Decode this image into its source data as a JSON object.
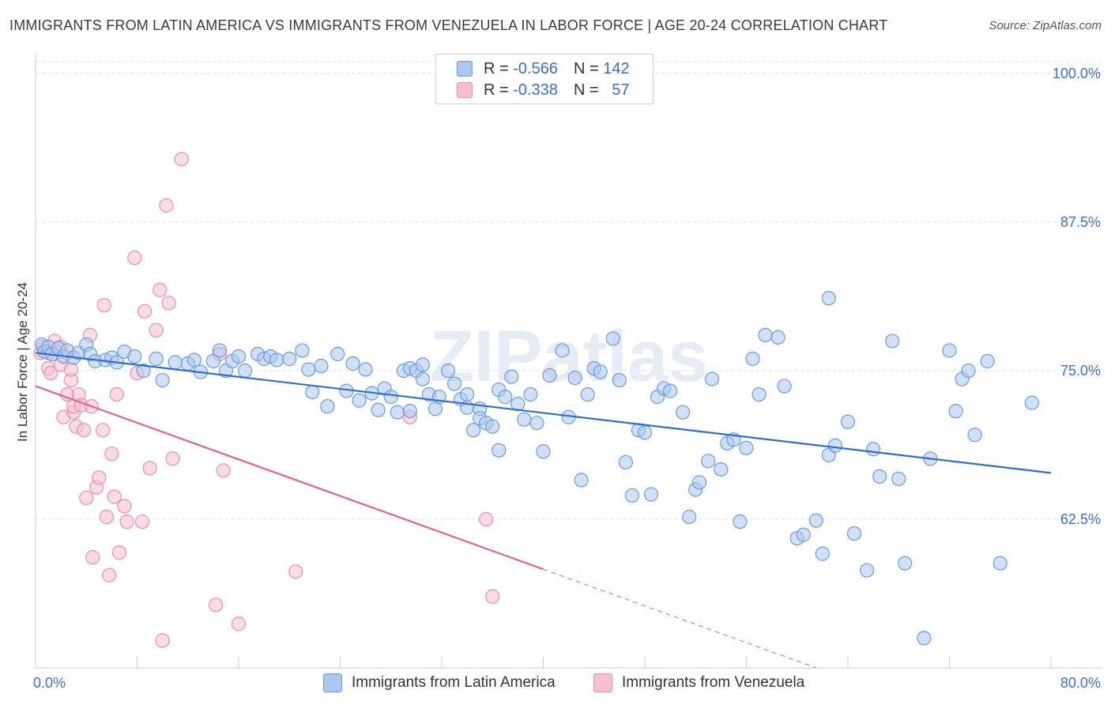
{
  "title": "IMMIGRANTS FROM LATIN AMERICA VS IMMIGRANTS FROM VENEZUELA IN LABOR FORCE | AGE 20-24 CORRELATION CHART",
  "source": "Source: ZipAtlas.com",
  "watermark": "ZIPatlas",
  "legend": {
    "r_label": "R =",
    "n_label": "N =",
    "rows": [
      {
        "r": "-0.566",
        "n": "142"
      },
      {
        "r": "-0.338",
        "n": "57"
      }
    ]
  },
  "bottom_legend": {
    "latin_america": "Immigrants from Latin America",
    "venezuela": "Immigrants from Venezuela"
  },
  "colors": {
    "blue_fill": "#a9c7f0",
    "blue_stroke": "#6c9be0",
    "blue_line": "#2f6fd0",
    "pink_fill": "#f7bfd0",
    "pink_stroke": "#ea8fae",
    "pink_line": "#e0638f",
    "tick_label": "#3a6fd0",
    "grid": "#dddddd"
  },
  "chart_data": {
    "type": "scatter",
    "title": "IMMIGRANTS FROM LATIN AMERICA VS IMMIGRANTS FROM VENEZUELA IN LABOR FORCE | AGE 20-24 CORRELATION CHART",
    "xlabel": "",
    "ylabel": "In Labor Force | Age 20-24",
    "xlim": [
      0,
      80
    ],
    "ylim": [
      50,
      101
    ],
    "x_tick_labels": [
      "0.0%",
      "80.0%"
    ],
    "y_ticks": [
      62.5,
      75.0,
      87.5,
      100.0
    ],
    "y_tick_labels": [
      "62.5%",
      "75.0%",
      "87.5%",
      "100.0%"
    ],
    "grid": true,
    "legend_position": "top-center",
    "series": [
      {
        "name": "Immigrants from Latin America",
        "points": [
          [
            0.5,
            77.2
          ],
          [
            0.7,
            76.6
          ],
          [
            1.0,
            77.0
          ],
          [
            1.3,
            76.4
          ],
          [
            1.8,
            76.9
          ],
          [
            2.2,
            76.2
          ],
          [
            2.5,
            76.7
          ],
          [
            3.0,
            76.1
          ],
          [
            3.4,
            76.5
          ],
          [
            4.0,
            77.2
          ],
          [
            4.3,
            76.4
          ],
          [
            4.7,
            75.8
          ],
          [
            5.5,
            75.9
          ],
          [
            6.0,
            76.1
          ],
          [
            6.4,
            75.7
          ],
          [
            7.0,
            76.6
          ],
          [
            7.8,
            76.2
          ],
          [
            8.5,
            75.0
          ],
          [
            9.5,
            76.0
          ],
          [
            10.0,
            74.2
          ],
          [
            11.0,
            75.7
          ],
          [
            12.0,
            75.6
          ],
          [
            12.5,
            75.9
          ],
          [
            13.0,
            74.9
          ],
          [
            14.0,
            75.8
          ],
          [
            14.5,
            76.7
          ],
          [
            15.0,
            75.0
          ],
          [
            15.5,
            75.8
          ],
          [
            16.0,
            76.2
          ],
          [
            16.5,
            75.0
          ],
          [
            17.5,
            76.4
          ],
          [
            18.0,
            76.0
          ],
          [
            18.5,
            76.2
          ],
          [
            19.0,
            75.9
          ],
          [
            20.0,
            76.0
          ],
          [
            21.0,
            76.7
          ],
          [
            21.5,
            75.1
          ],
          [
            21.8,
            73.2
          ],
          [
            22.5,
            75.4
          ],
          [
            23.0,
            72.0
          ],
          [
            23.8,
            76.4
          ],
          [
            24.5,
            73.3
          ],
          [
            25.0,
            75.6
          ],
          [
            25.5,
            72.5
          ],
          [
            26.0,
            75.1
          ],
          [
            26.5,
            73.1
          ],
          [
            27.0,
            71.7
          ],
          [
            27.5,
            73.5
          ],
          [
            28.0,
            72.8
          ],
          [
            28.5,
            71.5
          ],
          [
            29.0,
            75.0
          ],
          [
            29.5,
            75.2
          ],
          [
            29.5,
            71.6
          ],
          [
            30.0,
            75.0
          ],
          [
            30.5,
            75.5
          ],
          [
            30.5,
            74.3
          ],
          [
            31.0,
            73.0
          ],
          [
            31.5,
            71.8
          ],
          [
            31.8,
            72.8
          ],
          [
            32.5,
            75.0
          ],
          [
            33.0,
            73.9
          ],
          [
            33.5,
            72.6
          ],
          [
            34.0,
            73.0
          ],
          [
            34.0,
            71.9
          ],
          [
            34.5,
            70.0
          ],
          [
            35.0,
            71.8
          ],
          [
            35.0,
            71.0
          ],
          [
            35.5,
            70.6
          ],
          [
            36.0,
            70.3
          ],
          [
            36.5,
            73.4
          ],
          [
            37.0,
            72.8
          ],
          [
            36.5,
            68.3
          ],
          [
            37.5,
            74.5
          ],
          [
            38.0,
            72.2
          ],
          [
            38.5,
            70.9
          ],
          [
            39.0,
            73.0
          ],
          [
            39.5,
            70.6
          ],
          [
            40.0,
            68.2
          ],
          [
            40.5,
            74.6
          ],
          [
            41.5,
            76.7
          ],
          [
            42.0,
            71.1
          ],
          [
            42.5,
            74.4
          ],
          [
            43.0,
            65.8
          ],
          [
            43.5,
            73.0
          ],
          [
            44.0,
            75.2
          ],
          [
            44.5,
            74.9
          ],
          [
            45.5,
            77.7
          ],
          [
            46.0,
            74.2
          ],
          [
            46.5,
            67.3
          ],
          [
            47.0,
            64.5
          ],
          [
            47.5,
            70.0
          ],
          [
            48.0,
            69.8
          ],
          [
            48.5,
            64.6
          ],
          [
            49.0,
            72.8
          ],
          [
            49.5,
            73.5
          ],
          [
            50.0,
            73.3
          ],
          [
            51.0,
            71.5
          ],
          [
            51.5,
            62.7
          ],
          [
            52.0,
            65.0
          ],
          [
            52.3,
            65.6
          ],
          [
            53.0,
            67.4
          ],
          [
            53.3,
            74.3
          ],
          [
            54.0,
            66.7
          ],
          [
            54.5,
            68.9
          ],
          [
            55.0,
            69.2
          ],
          [
            55.5,
            62.3
          ],
          [
            56.0,
            68.5
          ],
          [
            56.5,
            76.0
          ],
          [
            57.0,
            73.0
          ],
          [
            57.5,
            78.0
          ],
          [
            58.5,
            77.8
          ],
          [
            59.0,
            73.7
          ],
          [
            60.0,
            60.9
          ],
          [
            60.5,
            61.2
          ],
          [
            61.5,
            62.4
          ],
          [
            62.0,
            59.6
          ],
          [
            62.5,
            81.1
          ],
          [
            62.5,
            67.9
          ],
          [
            63.0,
            68.7
          ],
          [
            64.0,
            70.7
          ],
          [
            64.5,
            61.3
          ],
          [
            65.5,
            58.2
          ],
          [
            66.0,
            68.4
          ],
          [
            66.5,
            66.1
          ],
          [
            67.5,
            77.5
          ],
          [
            68.0,
            65.9
          ],
          [
            68.5,
            58.8
          ],
          [
            70.0,
            52.5
          ],
          [
            70.5,
            67.6
          ],
          [
            72.0,
            76.7
          ],
          [
            72.5,
            71.6
          ],
          [
            73.0,
            74.3
          ],
          [
            73.5,
            75.0
          ],
          [
            74.0,
            69.6
          ],
          [
            75.0,
            75.8
          ],
          [
            76.0,
            58.8
          ],
          [
            78.5,
            72.3
          ]
        ],
        "trend": {
          "x": [
            0,
            80
          ],
          "y": [
            76.5,
            66.4
          ]
        }
      },
      {
        "name": "Immigrants from Venezuela",
        "points": [
          [
            0.4,
            76.5
          ],
          [
            0.6,
            77.0
          ],
          [
            1.0,
            76.5
          ],
          [
            1.0,
            75.2
          ],
          [
            1.2,
            74.8
          ],
          [
            1.5,
            77.5
          ],
          [
            2.0,
            77.0
          ],
          [
            2.0,
            75.5
          ],
          [
            2.2,
            71.1
          ],
          [
            2.5,
            73.0
          ],
          [
            2.8,
            74.2
          ],
          [
            2.8,
            75.1
          ],
          [
            3.0,
            71.5
          ],
          [
            3.0,
            72.0
          ],
          [
            3.2,
            70.3
          ],
          [
            3.4,
            73.0
          ],
          [
            3.6,
            72.1
          ],
          [
            3.8,
            70.0
          ],
          [
            4.0,
            64.3
          ],
          [
            4.3,
            78.0
          ],
          [
            4.4,
            72.0
          ],
          [
            4.5,
            59.3
          ],
          [
            4.8,
            65.2
          ],
          [
            5.0,
            66.0
          ],
          [
            5.3,
            70.0
          ],
          [
            5.4,
            80.5
          ],
          [
            5.6,
            62.7
          ],
          [
            5.8,
            57.8
          ],
          [
            6.0,
            68.0
          ],
          [
            6.2,
            64.4
          ],
          [
            6.4,
            73.0
          ],
          [
            6.6,
            59.7
          ],
          [
            7.0,
            63.6
          ],
          [
            7.2,
            62.3
          ],
          [
            7.8,
            84.5
          ],
          [
            8.0,
            74.8
          ],
          [
            8.4,
            62.3
          ],
          [
            8.6,
            80.0
          ],
          [
            9.0,
            66.8
          ],
          [
            9.5,
            78.4
          ],
          [
            9.8,
            81.8
          ],
          [
            10.0,
            52.3
          ],
          [
            10.3,
            88.9
          ],
          [
            10.5,
            80.7
          ],
          [
            10.8,
            67.6
          ],
          [
            11.5,
            92.8
          ],
          [
            14.2,
            55.3
          ],
          [
            14.5,
            76.4
          ],
          [
            14.8,
            66.6
          ],
          [
            16.0,
            53.7
          ],
          [
            20.5,
            58.1
          ],
          [
            29.5,
            71.1
          ],
          [
            35.5,
            62.5
          ],
          [
            36.0,
            56.0
          ]
        ],
        "trend": {
          "x": [
            0,
            40
          ],
          "y": [
            73.7,
            58.3
          ]
        },
        "trend_extension": {
          "x": [
            40,
            61.5
          ],
          "y": [
            58.3,
            50.0
          ]
        }
      }
    ]
  }
}
